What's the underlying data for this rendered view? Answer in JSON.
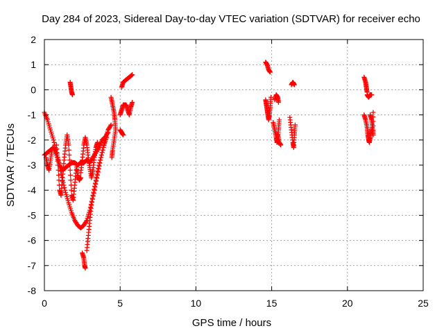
{
  "chart_data": {
    "type": "scatter",
    "title": "Day 284 of 2023, Sidereal Day-to-day VTEC variation (SDTVAR) for receiver echo",
    "xlabel": "GPS time / hours",
    "ylabel": "SDTVAR / TECUs",
    "xlim": [
      0,
      25
    ],
    "ylim": [
      -8,
      2
    ],
    "xticks": [
      "0",
      "5",
      "10",
      "15",
      "20",
      "25"
    ],
    "yticks": [
      "-8",
      "-7",
      "-6",
      "-5",
      "-4",
      "-3",
      "-2",
      "-1",
      "0",
      "1",
      "2"
    ],
    "grid": true,
    "marker": "plus",
    "color": "#ff0000",
    "segments": [
      {
        "points": [
          [
            0.0,
            -0.9
          ],
          [
            0.2,
            -1.2
          ],
          [
            0.4,
            -1.6
          ],
          [
            0.6,
            -2.0
          ],
          [
            0.8,
            -2.5
          ],
          [
            1.0,
            -3.0
          ],
          [
            1.2,
            -3.6
          ],
          [
            1.4,
            -4.1
          ],
          [
            1.6,
            -4.5
          ],
          [
            1.8,
            -4.9
          ],
          [
            2.0,
            -5.2
          ],
          [
            2.2,
            -5.4
          ],
          [
            2.4,
            -5.5
          ],
          [
            2.6,
            -5.4
          ],
          [
            2.8,
            -5.2
          ],
          [
            3.0,
            -4.8
          ],
          [
            3.2,
            -4.2
          ],
          [
            3.4,
            -3.6
          ],
          [
            3.6,
            -3.0
          ],
          [
            3.8,
            -2.5
          ],
          [
            4.0,
            -2.0
          ],
          [
            4.2,
            -1.6
          ],
          [
            4.4,
            -1.4
          ]
        ]
      },
      {
        "points": [
          [
            0.0,
            -2.6
          ],
          [
            0.2,
            -2.5
          ],
          [
            0.4,
            -2.4
          ],
          [
            0.6,
            -2.3
          ],
          [
            0.8,
            -2.6
          ],
          [
            1.0,
            -3.0
          ],
          [
            1.2,
            -3.2
          ],
          [
            1.4,
            -3.1
          ],
          [
            1.6,
            -3.0
          ],
          [
            1.8,
            -2.9
          ],
          [
            2.0,
            -2.9
          ],
          [
            2.2,
            -3.0
          ],
          [
            2.4,
            -2.9
          ],
          [
            2.6,
            -2.9
          ],
          [
            2.8,
            -2.8
          ],
          [
            3.0,
            -2.9
          ],
          [
            3.2,
            -2.7
          ],
          [
            3.4,
            -2.5
          ],
          [
            3.6,
            -2.3
          ],
          [
            3.8,
            -2.0
          ],
          [
            4.0,
            -1.9
          ],
          [
            4.2,
            -1.7
          ]
        ]
      },
      {
        "points": [
          [
            0.1,
            -2.7
          ],
          [
            0.2,
            -3.0
          ],
          [
            0.3,
            -3.2
          ],
          [
            0.4,
            -2.8
          ],
          [
            0.5,
            -2.4
          ]
        ]
      },
      {
        "points": [
          [
            0.8,
            -2.2
          ],
          [
            0.9,
            -3.0
          ],
          [
            1.0,
            -4.0
          ],
          [
            1.1,
            -4.2
          ],
          [
            1.2,
            -3.5
          ],
          [
            1.3,
            -2.8
          ],
          [
            1.4,
            -2.2
          ],
          [
            1.5,
            -1.8
          ],
          [
            1.6,
            -2.2
          ],
          [
            1.7,
            -3.2
          ],
          [
            1.8,
            -4.2
          ],
          [
            1.9,
            -4.4
          ],
          [
            2.0,
            -3.8
          ],
          [
            2.1,
            -3.2
          ]
        ]
      },
      {
        "points": [
          [
            2.1,
            -3.0
          ],
          [
            2.2,
            -3.4
          ],
          [
            2.3,
            -3.6
          ],
          [
            2.4,
            -3.5
          ]
        ]
      },
      {
        "points": [
          [
            2.4,
            -3.3
          ],
          [
            2.5,
            -2.8
          ],
          [
            2.6,
            -2.2
          ],
          [
            2.7,
            -1.9
          ],
          [
            2.8,
            -2.2
          ],
          [
            2.9,
            -2.7
          ],
          [
            3.0,
            -3.1
          ],
          [
            3.1,
            -3.5
          ],
          [
            3.2,
            -3.2
          ],
          [
            3.3,
            -2.7
          ],
          [
            3.4,
            -2.3
          ],
          [
            3.5,
            -2.1
          ]
        ]
      },
      {
        "points": [
          [
            1.7,
            0.3
          ],
          [
            1.75,
            0.1
          ],
          [
            1.8,
            -0.1
          ],
          [
            1.85,
            -0.2
          ]
        ]
      },
      {
        "points": [
          [
            2.5,
            -6.5
          ],
          [
            2.6,
            -6.7
          ],
          [
            2.65,
            -7.0
          ],
          [
            2.7,
            -7.1
          ]
        ]
      },
      {
        "points": [
          [
            2.8,
            -6.4
          ],
          [
            2.9,
            -5.8
          ],
          [
            3.0,
            -5.2
          ],
          [
            3.1,
            -4.6
          ],
          [
            3.3,
            -4.0
          ],
          [
            3.5,
            -3.4
          ],
          [
            3.7,
            -2.8
          ],
          [
            3.9,
            -2.3
          ],
          [
            4.1,
            -1.9
          ]
        ]
      },
      {
        "points": [
          [
            4.4,
            -0.3
          ],
          [
            4.5,
            -0.6
          ],
          [
            4.6,
            -0.9
          ],
          [
            4.65,
            -1.2
          ],
          [
            4.7,
            -1.6
          ],
          [
            4.6,
            -2.0
          ],
          [
            4.5,
            -2.4
          ],
          [
            4.45,
            -2.7
          ]
        ]
      },
      {
        "points": [
          [
            5.0,
            -1.0
          ],
          [
            5.1,
            -0.8
          ],
          [
            5.2,
            -0.6
          ],
          [
            5.4,
            -0.6
          ],
          [
            5.5,
            -0.8
          ],
          [
            5.6,
            -1.0
          ],
          [
            5.7,
            -0.7
          ],
          [
            5.8,
            -0.5
          ]
        ]
      },
      {
        "points": [
          [
            5.0,
            -1.6
          ],
          [
            5.1,
            -1.7
          ],
          [
            5.2,
            -1.8
          ]
        ]
      },
      {
        "points": [
          [
            5.1,
            0.1
          ],
          [
            5.2,
            0.3
          ],
          [
            5.4,
            0.4
          ],
          [
            5.6,
            0.5
          ],
          [
            5.8,
            0.6
          ]
        ]
      },
      {
        "points": [
          [
            14.6,
            1.1
          ],
          [
            14.7,
            1.0
          ],
          [
            14.8,
            0.8
          ],
          [
            14.9,
            0.7
          ]
        ]
      },
      {
        "points": [
          [
            14.6,
            -0.4
          ],
          [
            14.65,
            -0.6
          ],
          [
            14.7,
            -0.8
          ],
          [
            14.75,
            -1.0
          ],
          [
            14.8,
            -1.2
          ],
          [
            14.85,
            -1.0
          ],
          [
            14.9,
            -0.7
          ],
          [
            14.95,
            -0.3
          ]
        ]
      },
      {
        "points": [
          [
            15.1,
            -1.3
          ],
          [
            15.2,
            -1.6
          ],
          [
            15.3,
            -1.9
          ],
          [
            15.35,
            -2.1
          ],
          [
            15.4,
            -2.0
          ],
          [
            15.45,
            -1.6
          ],
          [
            15.5,
            -1.2
          ]
        ]
      },
      {
        "points": [
          [
            15.2,
            -0.4
          ],
          [
            15.3,
            -0.2
          ],
          [
            15.4,
            -0.3
          ],
          [
            15.45,
            -0.5
          ]
        ]
      },
      {
        "points": [
          [
            15.4,
            -1.8
          ],
          [
            15.5,
            -2.1
          ],
          [
            15.6,
            -2.2
          ]
        ]
      },
      {
        "points": [
          [
            16.2,
            -1.1
          ],
          [
            16.3,
            -1.6
          ],
          [
            16.4,
            -2.1
          ],
          [
            16.45,
            -2.3
          ],
          [
            16.5,
            -1.8
          ],
          [
            16.55,
            -1.4
          ]
        ]
      },
      {
        "points": [
          [
            16.3,
            0.2
          ],
          [
            16.4,
            0.3
          ],
          [
            16.5,
            0.2
          ]
        ]
      },
      {
        "points": [
          [
            21.1,
            0.5
          ],
          [
            21.2,
            0.3
          ],
          [
            21.25,
            0.1
          ],
          [
            21.3,
            -0.1
          ]
        ]
      },
      {
        "points": [
          [
            21.3,
            -0.2
          ],
          [
            21.4,
            -0.3
          ],
          [
            21.5,
            -0.2
          ],
          [
            21.6,
            -0.2
          ]
        ]
      },
      {
        "points": [
          [
            21.1,
            -1.0
          ],
          [
            21.2,
            -1.2
          ],
          [
            21.3,
            -1.5
          ],
          [
            21.35,
            -1.8
          ],
          [
            21.4,
            -2.0
          ],
          [
            21.45,
            -2.1
          ],
          [
            21.5,
            -1.9
          ],
          [
            21.55,
            -1.6
          ]
        ]
      },
      {
        "points": [
          [
            21.5,
            -1.0
          ],
          [
            21.6,
            -1.2
          ],
          [
            21.65,
            -1.5
          ],
          [
            21.7,
            -1.8
          ],
          [
            21.7,
            -0.9
          ]
        ]
      }
    ]
  }
}
